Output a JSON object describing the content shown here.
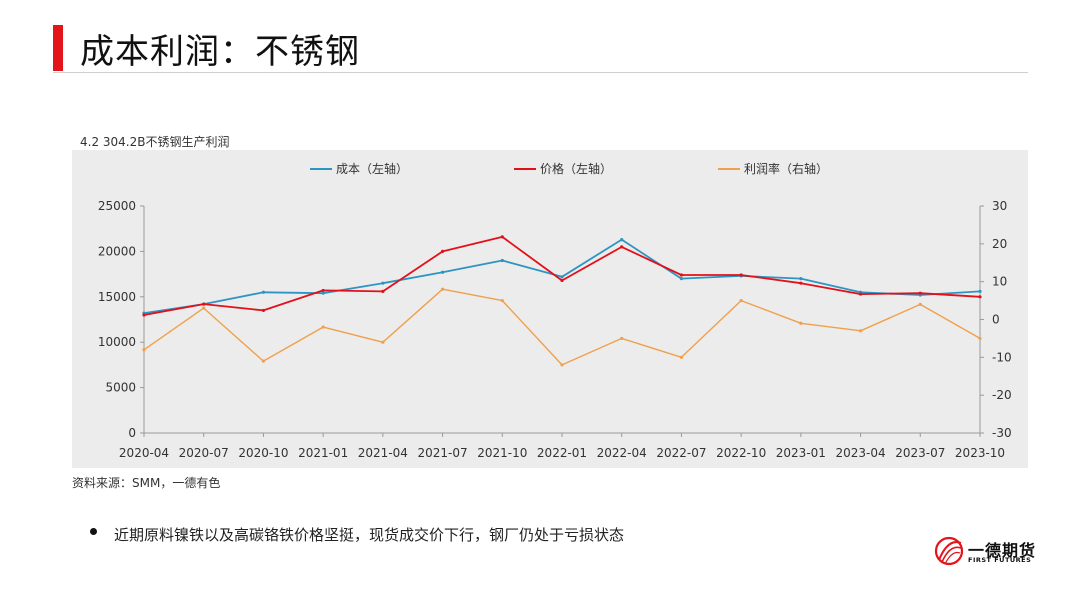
{
  "page": {
    "title": "成本利润：不锈钢",
    "caption": "4.2 304.2B不锈钢生产利润",
    "source": "资料来源：SMM，一德有色",
    "bullet": "近期原料镍铁以及高碳铬铁价格坚挺，现货成交价下行，钢厂仍处于亏损状态"
  },
  "logo": {
    "name": "一德期货",
    "sub": "FIRST FUTURES",
    "icon": "first-futures-logo-icon"
  },
  "colors": {
    "accent": "#e4141b",
    "cost": "#2e95c3",
    "price": "#e3101a",
    "margin": "#f0a04b"
  },
  "chart_data": {
    "type": "line",
    "x": [
      "2020-04",
      "2020-07",
      "2020-10",
      "2021-01",
      "2021-04",
      "2021-07",
      "2021-10",
      "2022-01",
      "2022-04",
      "2022-07",
      "2022-10",
      "2023-01",
      "2023-04",
      "2023-07",
      "2023-10"
    ],
    "x_tick_labels": [
      "2020-04",
      "2020-07",
      "2020-10",
      "2021-01",
      "2021-04",
      "2021-07",
      "2021-10",
      "2022-01",
      "2022-04",
      "2022-07",
      "2022-10",
      "2023-01",
      "2023-04",
      "2023-07",
      "2023-10"
    ],
    "y_left_ticks": [
      "25000",
      "20000",
      "15000",
      "10000",
      "5000",
      "0"
    ],
    "y_right_ticks": [
      "30",
      "20",
      "10",
      "0",
      "-10",
      "-20",
      "-30"
    ],
    "ylim_left": [
      0,
      25000
    ],
    "ylim_right": [
      -30,
      30
    ],
    "legend_position": "top",
    "grid": false,
    "series": [
      {
        "name": "成本（左轴）",
        "axis": "left",
        "values": [
          13200,
          14200,
          15500,
          15400,
          16500,
          17700,
          19000,
          17200,
          21300,
          17000,
          17300,
          17000,
          15500,
          15200,
          15600
        ]
      },
      {
        "name": "价格（左轴）",
        "axis": "left",
        "values": [
          13000,
          14200,
          13500,
          15700,
          15600,
          20000,
          21600,
          16800,
          20500,
          17400,
          17400,
          16500,
          15300,
          15400,
          15000
        ]
      },
      {
        "name": "利润率（右轴）",
        "axis": "right",
        "values": [
          -8,
          3,
          -11,
          -2,
          -6,
          8,
          5,
          -12,
          -5,
          -10,
          5,
          -1,
          -3,
          4,
          -5
        ]
      }
    ]
  }
}
